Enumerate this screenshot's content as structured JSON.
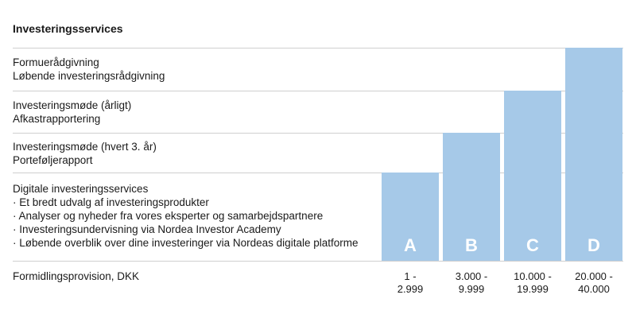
{
  "title": "Investeringsservices",
  "rows": [
    {
      "lines": [
        "Formuerådgivning",
        "Løbende investeringsrådgivning"
      ]
    },
    {
      "lines": [
        "Investeringsmøde (årligt)",
        "Afkastrapportering"
      ]
    },
    {
      "lines": [
        "Investeringsmøde (hvert 3. år)",
        "Porteføljerapport"
      ]
    },
    {
      "lines": [
        "Digitale investeringsservices",
        "· Et bredt udvalg af investeringsprodukter",
        "· Analyser og nyheder fra vores eksperter og samarbejdspartnere",
        "· Investeringsundervisning via Nordea Investor Academy",
        "· Løbende overblik over dine investeringer via Nordeas digitale platforme"
      ]
    }
  ],
  "footer_label": "Formidlingsprovision, DKK",
  "colors": {
    "bar": "#a6c9e8",
    "bar_letter": "#ffffff",
    "rule": "#cfcfcf"
  },
  "chart_data": {
    "type": "bar",
    "categories": [
      "A",
      "B",
      "C",
      "D"
    ],
    "values": [
      1,
      2,
      3,
      4
    ],
    "price_ranges": [
      [
        "1 -",
        "2.999"
      ],
      [
        "3.000 -",
        "9.999"
      ],
      [
        "10.000 -",
        "19.999"
      ],
      [
        "20.000 -",
        "40.000"
      ]
    ],
    "ylim": [
      0,
      4
    ]
  }
}
